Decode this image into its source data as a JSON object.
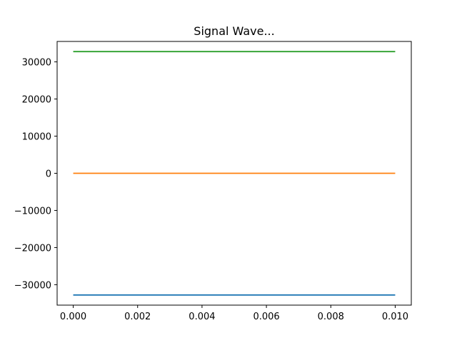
{
  "chart_data": {
    "type": "line",
    "title": "Signal Wave...",
    "xlabel": "",
    "ylabel": "",
    "xlim": [
      -0.0005,
      0.0105
    ],
    "ylim": [
      -35500,
      35500
    ],
    "x_ticks": [
      0.0,
      0.002,
      0.004,
      0.006,
      0.008,
      0.01
    ],
    "x_tick_labels": [
      "0.000",
      "0.002",
      "0.004",
      "0.006",
      "0.008",
      "0.010"
    ],
    "y_ticks": [
      30000,
      20000,
      10000,
      0,
      -10000,
      -20000,
      -30000
    ],
    "y_tick_labels": [
      "30000",
      "20000",
      "10000",
      "0",
      "−10000",
      "−20000",
      "−30000"
    ],
    "grid": false,
    "legend": "none",
    "series": [
      {
        "color": "#1f77b4",
        "x": [
          0.0,
          0.01
        ],
        "y": [
          -32767,
          -32767
        ]
      },
      {
        "color": "#ff7f0e",
        "x": [
          0.0,
          0.01
        ],
        "y": [
          0,
          0
        ]
      },
      {
        "color": "#2ca02c",
        "x": [
          0.0,
          0.01
        ],
        "y": [
          32767,
          32767
        ]
      }
    ]
  }
}
